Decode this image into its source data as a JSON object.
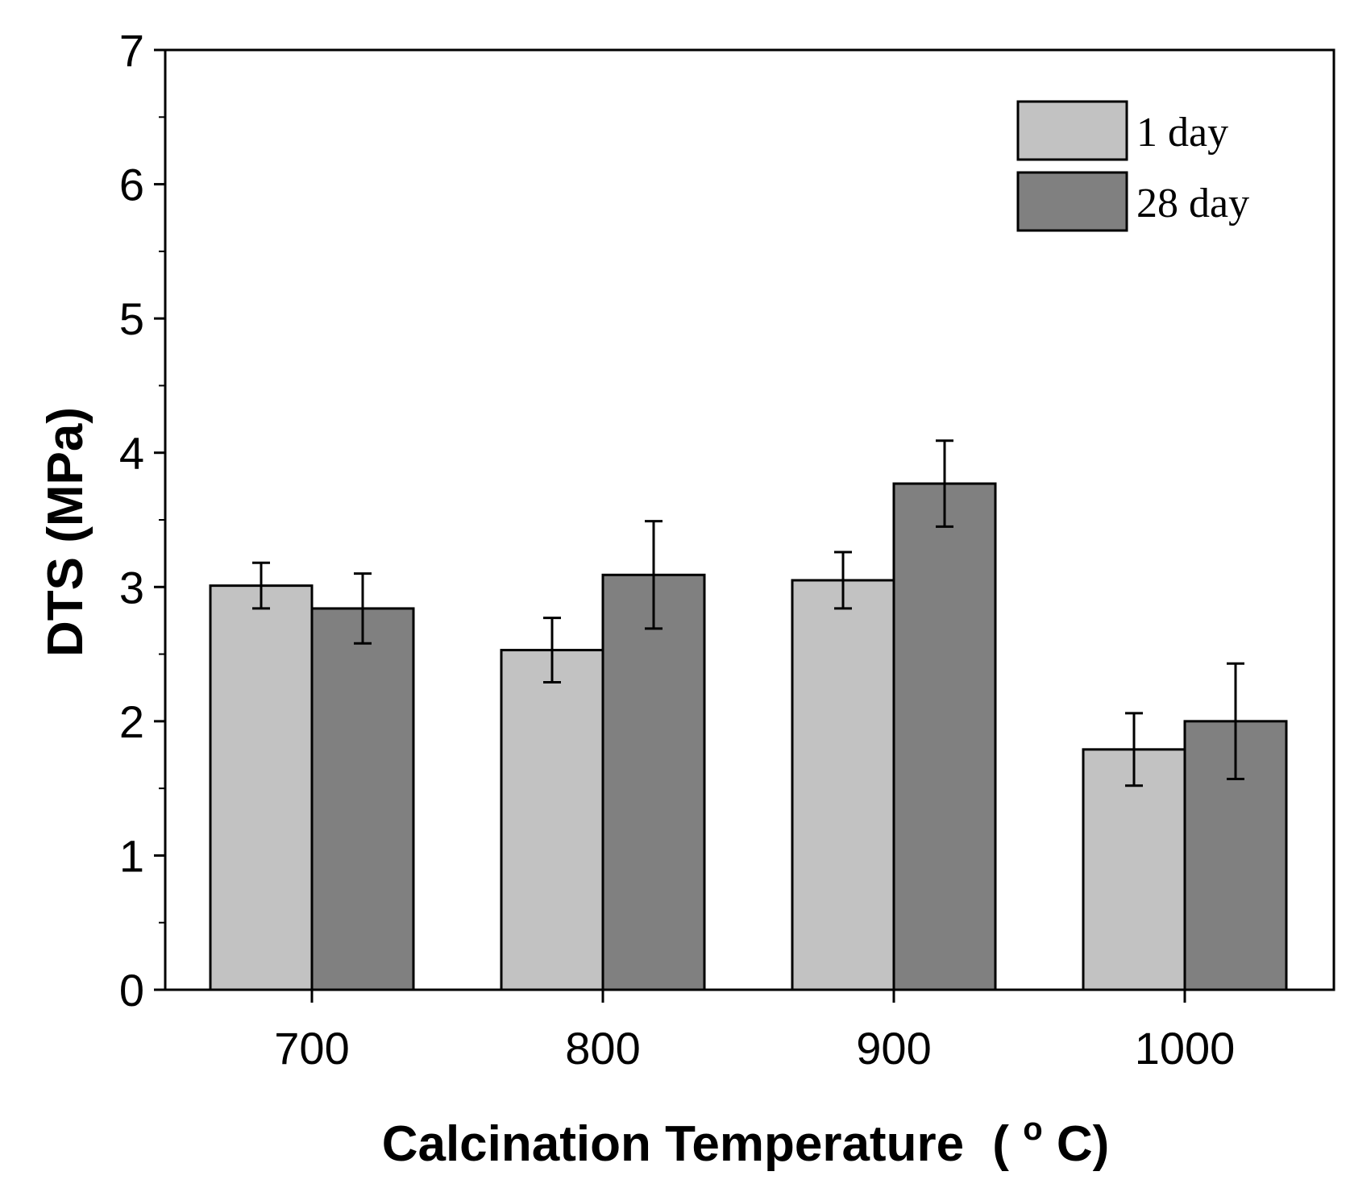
{
  "chart_data": {
    "type": "bar",
    "title": "",
    "xlabel": "Calcination Temperature",
    "xlabel_unit": "(°C)",
    "xlabel_unit_open": "(",
    "xlabel_unit_degree": "o",
    "xlabel_unit_close": "C)",
    "ylabel": "DTS (MPa)",
    "ylim": [
      0,
      7
    ],
    "yticks": [
      0,
      1,
      2,
      3,
      4,
      5,
      6,
      7
    ],
    "categories": [
      "700",
      "800",
      "900",
      "1000"
    ],
    "series": [
      {
        "name": "1  day",
        "color": "#c2c2c2",
        "values": [
          3.01,
          2.53,
          3.05,
          1.79
        ],
        "errors": [
          0.17,
          0.24,
          0.21,
          0.27
        ]
      },
      {
        "name": "28 day",
        "color": "#808080",
        "values": [
          2.84,
          3.09,
          3.77,
          2.0
        ],
        "errors": [
          0.26,
          0.4,
          0.32,
          0.43
        ]
      }
    ],
    "legend_position": "top-right",
    "grid": false
  }
}
